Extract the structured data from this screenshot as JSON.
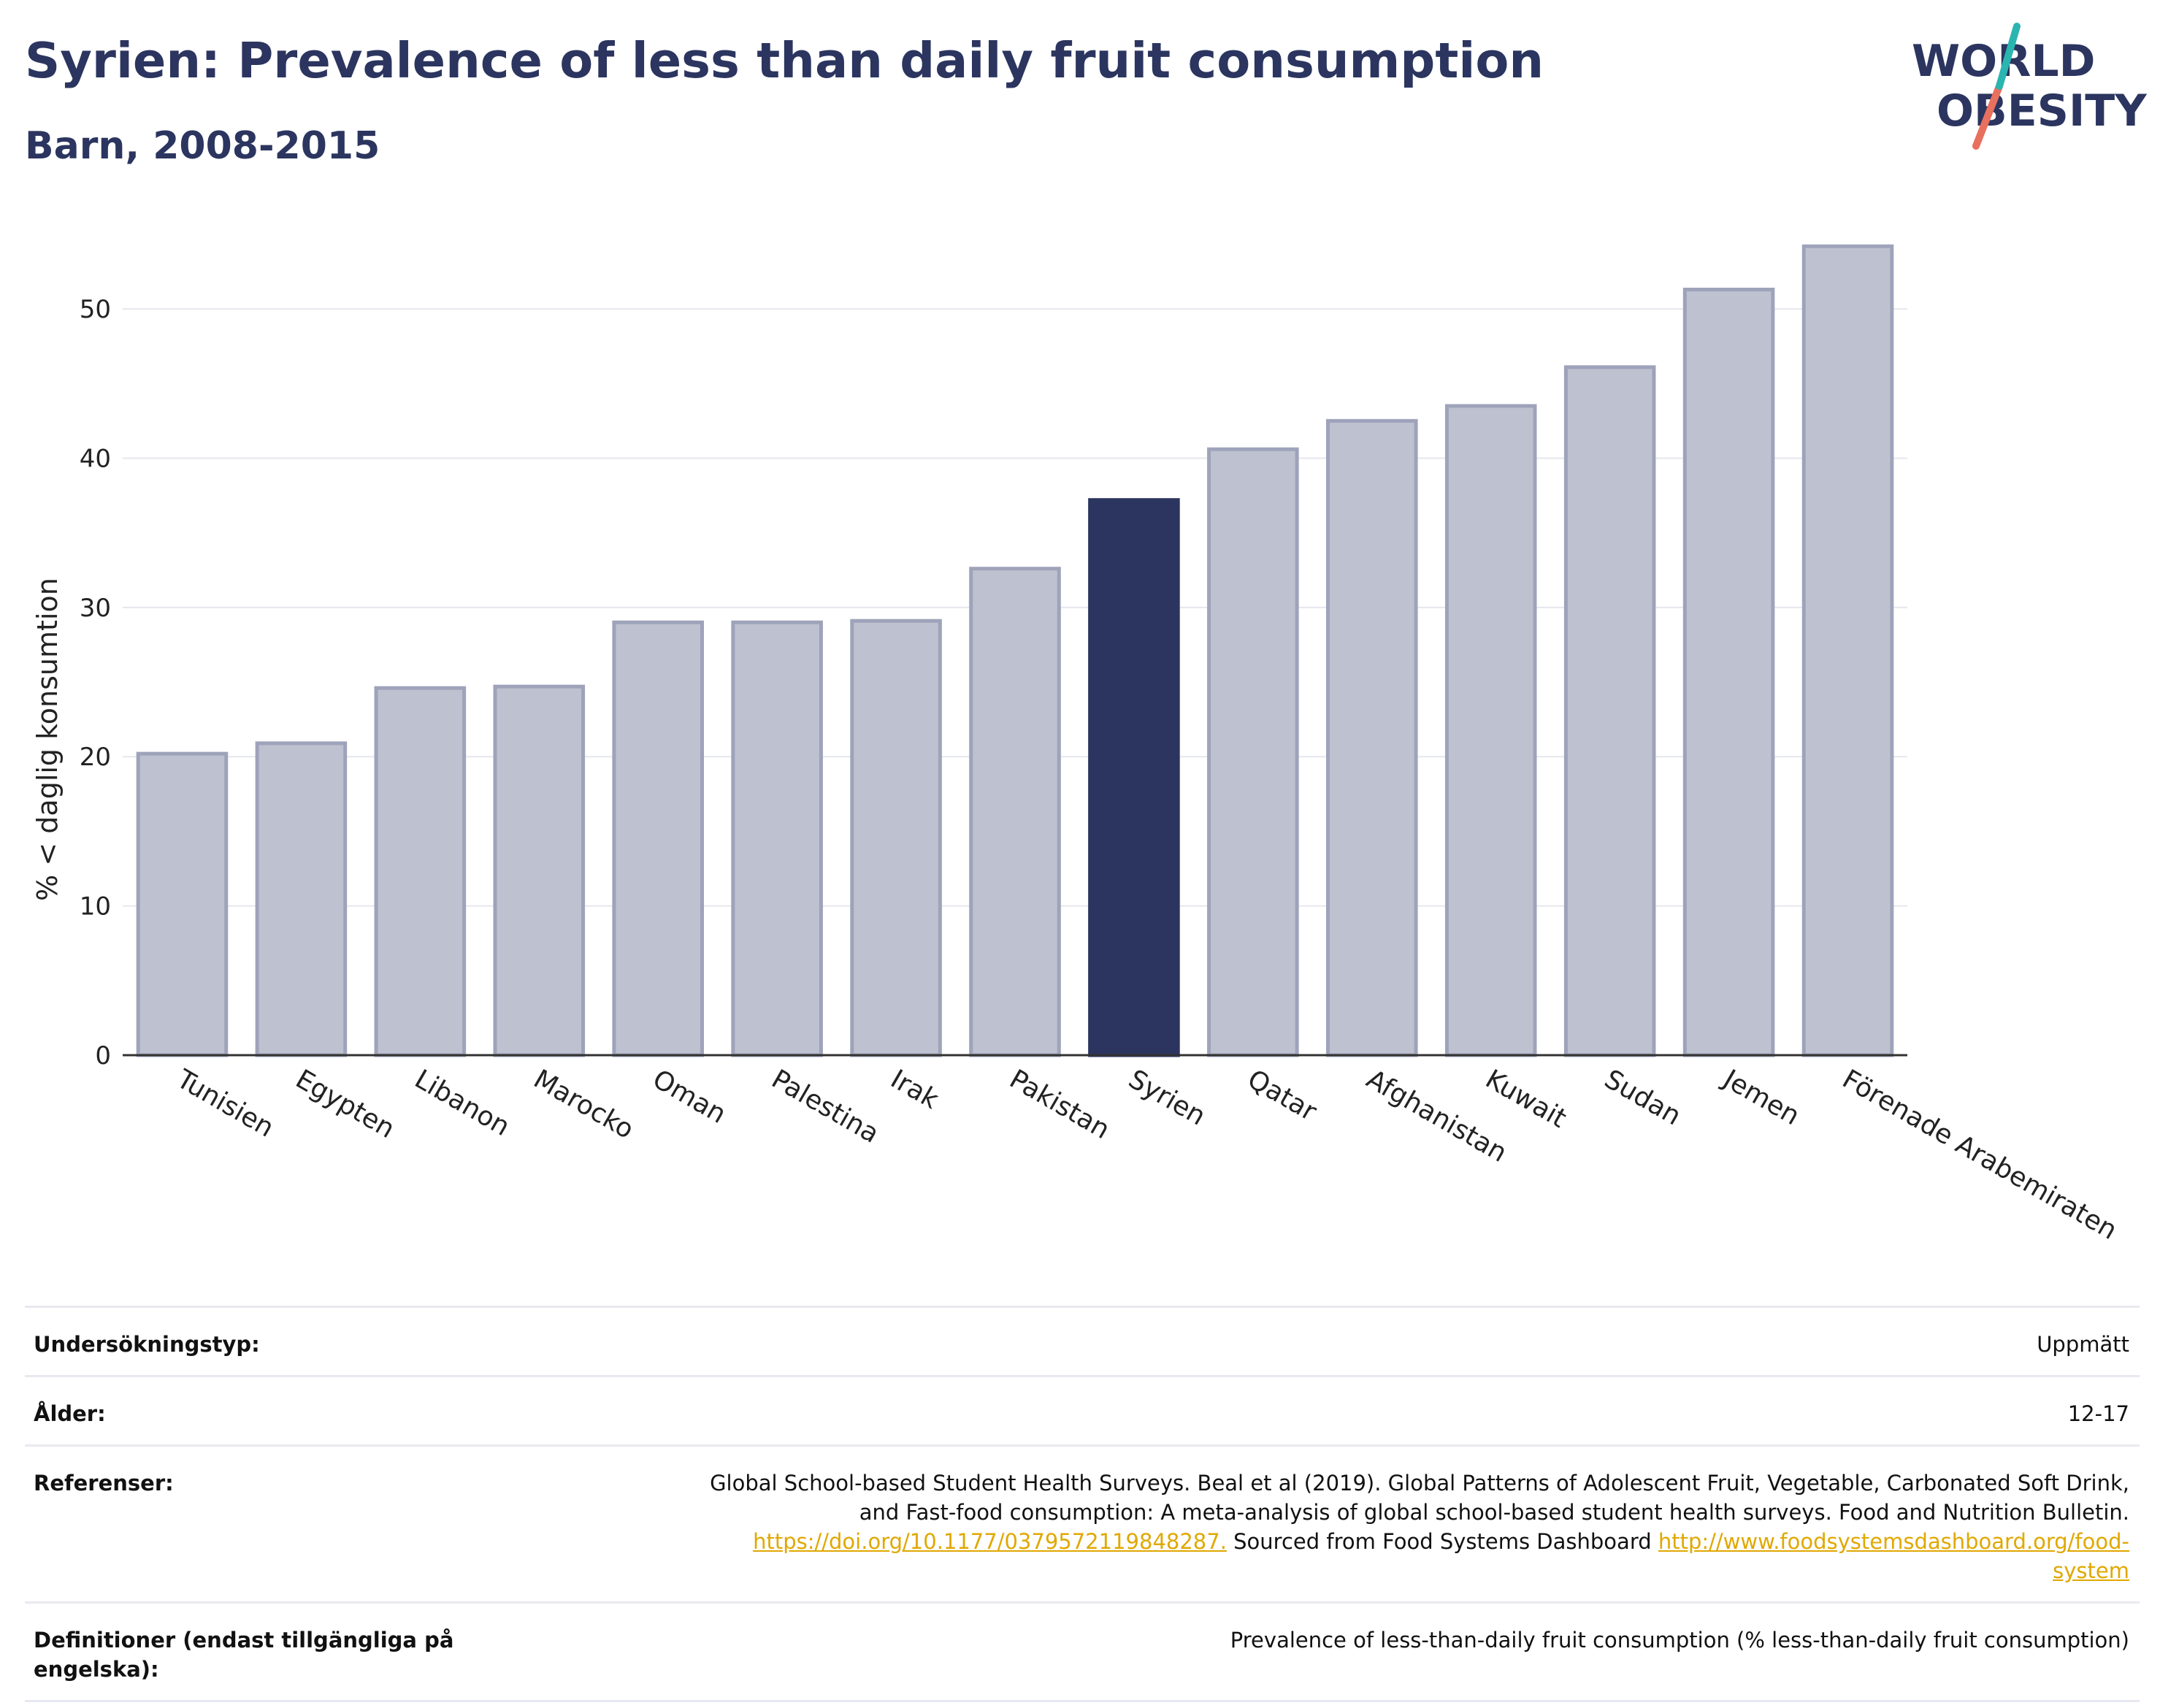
{
  "header": {
    "title": "Syrien: Prevalence of less than daily fruit consumption",
    "subtitle": "Barn, 2008-2015",
    "logo_line1": "WORLD",
    "logo_line2": "OBESITY"
  },
  "chart_data": {
    "type": "bar",
    "ylabel": "% < daglig konsumtion",
    "ylim": [
      0,
      57
    ],
    "yticks": [
      0,
      10,
      20,
      30,
      40,
      50
    ],
    "grid": true,
    "highlight": "Syrien",
    "categories": [
      "Tunisien",
      "Egypten",
      "Libanon",
      "Marocko",
      "Oman",
      "Palestina",
      "Irak",
      "Pakistan",
      "Syrien",
      "Qatar",
      "Afghanistan",
      "Kuwait",
      "Sudan",
      "Jemen",
      "Förenade Arabemiraten"
    ],
    "values": [
      20.2,
      20.9,
      24.6,
      24.7,
      29.0,
      29.0,
      29.1,
      32.6,
      37.2,
      40.6,
      42.5,
      43.5,
      46.1,
      51.3,
      54.2
    ],
    "colors": {
      "bar": "#bec1cf",
      "bar_stroke": "#9ea3ba",
      "highlight": "#2b355f"
    }
  },
  "info": {
    "survey_label": "Undersökningstyp:",
    "survey_value": "Uppmätt",
    "age_label": "Ålder:",
    "age_value": "12-17",
    "ref_label": "Referenser:",
    "ref_text1": "Global School-based Student Health Surveys. Beal et al (2019). Global Patterns of Adolescent Fruit, Vegetable, Carbonated Soft Drink,",
    "ref_text2": "and Fast-food consumption: A meta-analysis of global school-based student health surveys. Food and Nutrition Bulletin.",
    "ref_link1": "https://doi.org/10.1177/0379572119848287.",
    "ref_text3": " Sourced from Food Systems Dashboard ",
    "ref_link2a": "http://www.foodsystemsdashboard.org/food-",
    "ref_link2b": "system",
    "def_label": "Definitioner (endast tillgängliga på engelska):",
    "def_value": "Prevalence of less-than-daily fruit consumption (% less-than-daily fruit consumption)"
  }
}
